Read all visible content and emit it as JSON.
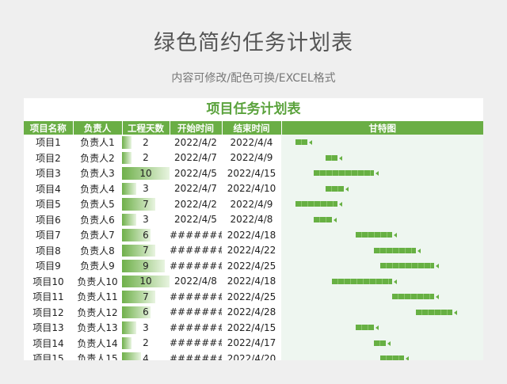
{
  "page": {
    "title": "绿色简约任务计划表",
    "subtitle": "内容可修改/配色可换/EXCEL格式"
  },
  "sheet": {
    "title": "项目任务计划表",
    "columns": [
      "项目名称",
      "负责人",
      "工程天数",
      "开始时间",
      "结束时间",
      "甘特图"
    ],
    "accent_color": "#6aae45",
    "rows": [
      {
        "name": "项目1",
        "owner": "负责人1",
        "days": "2",
        "start": "2022/4/2",
        "end": "2022/4/4",
        "start_day": 2,
        "end_day": 4
      },
      {
        "name": "项目2",
        "owner": "负责人2",
        "days": "2",
        "start": "2022/4/7",
        "end": "2022/4/9",
        "start_day": 7,
        "end_day": 9
      },
      {
        "name": "项目3",
        "owner": "负责人3",
        "days": "10",
        "start": "2022/4/5",
        "end": "2022/4/15",
        "start_day": 5,
        "end_day": 15
      },
      {
        "name": "项目4",
        "owner": "负责人4",
        "days": "3",
        "start": "2022/4/7",
        "end": "2022/4/10",
        "start_day": 7,
        "end_day": 10
      },
      {
        "name": "项目5",
        "owner": "负责人5",
        "days": "7",
        "start": "2022/4/2",
        "end": "2022/4/9",
        "start_day": 2,
        "end_day": 9
      },
      {
        "name": "项目6",
        "owner": "负责人6",
        "days": "3",
        "start": "2022/4/5",
        "end": "2022/4/8",
        "start_day": 5,
        "end_day": 8
      },
      {
        "name": "项目7",
        "owner": "负责人7",
        "days": "6",
        "start": "########",
        "end": "2022/4/18",
        "start_day": 12,
        "end_day": 18
      },
      {
        "name": "项目8",
        "owner": "负责人8",
        "days": "7",
        "start": "########",
        "end": "2022/4/22",
        "start_day": 15,
        "end_day": 22
      },
      {
        "name": "项目9",
        "owner": "负责人9",
        "days": "9",
        "start": "########",
        "end": "2022/4/25",
        "start_day": 16,
        "end_day": 25
      },
      {
        "name": "项目10",
        "owner": "负责人10",
        "days": "10",
        "start": "2022/4/8",
        "end": "2022/4/18",
        "start_day": 8,
        "end_day": 18
      },
      {
        "name": "项目11",
        "owner": "负责人11",
        "days": "7",
        "start": "########",
        "end": "2022/4/25",
        "start_day": 18,
        "end_day": 25
      },
      {
        "name": "项目12",
        "owner": "负责人12",
        "days": "6",
        "start": "########",
        "end": "2022/4/28",
        "start_day": 22,
        "end_day": 28
      },
      {
        "name": "项目13",
        "owner": "负责人13",
        "days": "3",
        "start": "########",
        "end": "2022/4/15",
        "start_day": 12,
        "end_day": 15
      },
      {
        "name": "项目14",
        "owner": "负责人14",
        "days": "2",
        "start": "########",
        "end": "2022/4/17",
        "start_day": 15,
        "end_day": 17
      },
      {
        "name": "项目15",
        "owner": "负责人15",
        "days": "4",
        "start": "########",
        "end": "2022/4/20",
        "start_day": 16,
        "end_day": 20
      }
    ]
  }
}
